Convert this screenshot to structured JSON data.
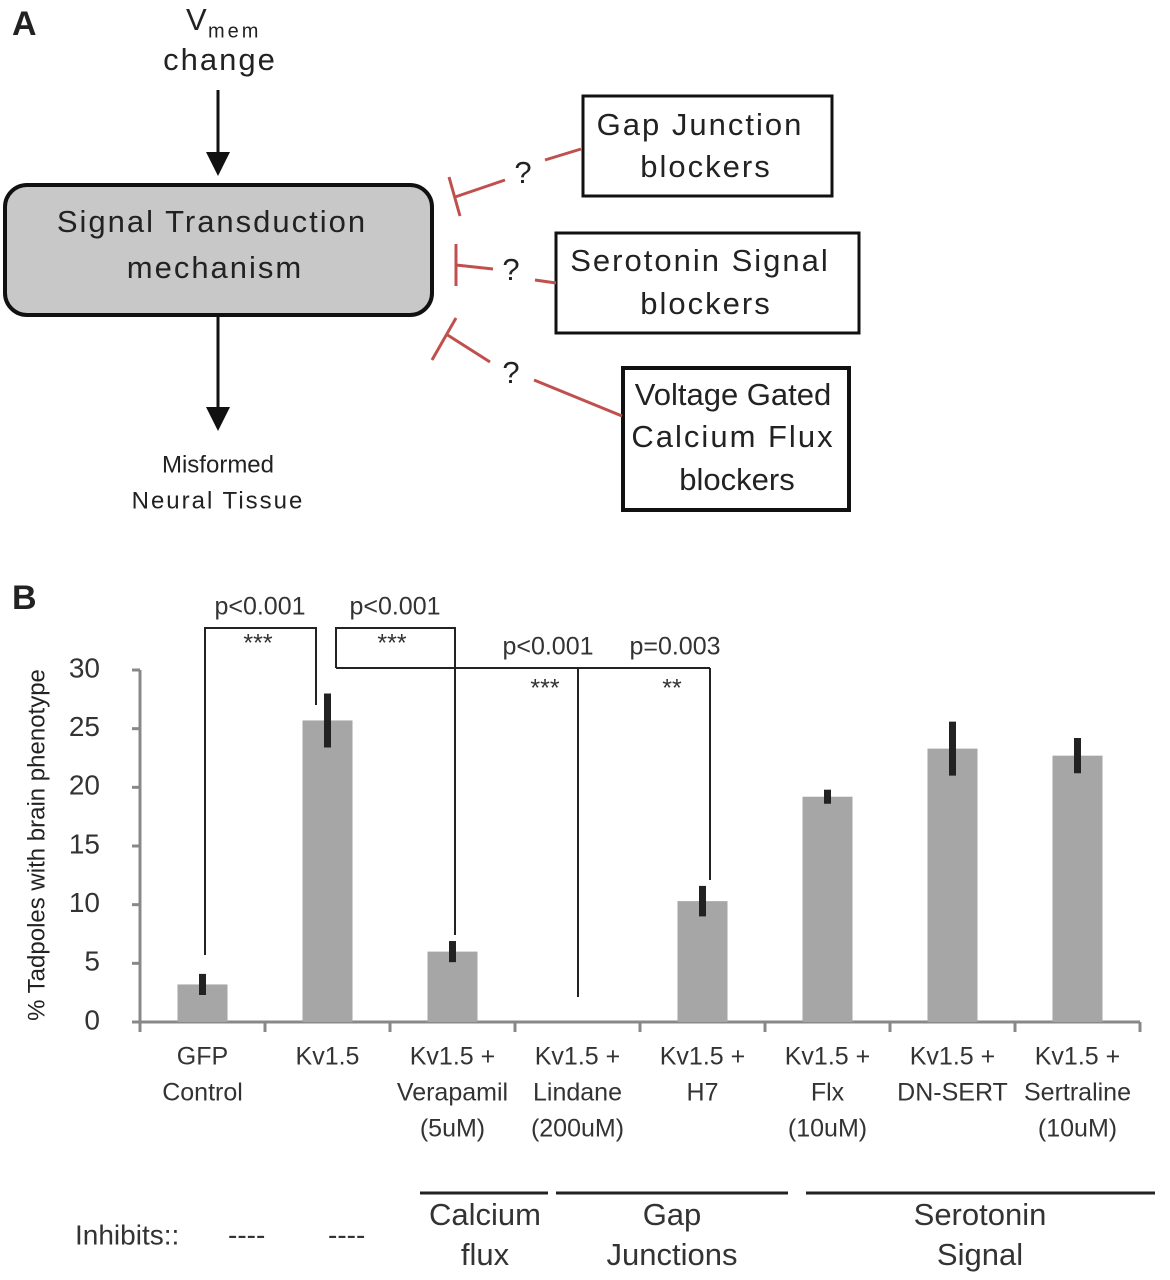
{
  "diagram": {
    "panel": "A",
    "input": {
      "symbol": "V",
      "subscript": "mem",
      "label": "change"
    },
    "center": [
      "Signal Transduction",
      "mechanism"
    ],
    "output": [
      "Misformed",
      "Neural Tissue"
    ],
    "question": "?",
    "blockers": [
      [
        "Gap Junction",
        "blockers"
      ],
      [
        "Serotonin Signal",
        "blockers"
      ],
      [
        "Voltage Gated",
        "Calcium Flux",
        "blockers"
      ]
    ]
  },
  "chart_data": {
    "type": "bar",
    "panel": "B",
    "y_label": "% Tadpoles with brain phenotype",
    "categories": [
      [
        "GFP",
        "Control"
      ],
      [
        "Kv1.5"
      ],
      [
        "Kv1.5 +",
        "Verapamil",
        "(5uM)"
      ],
      [
        "Kv1.5 +",
        "Lindane",
        "(200uM)"
      ],
      [
        "Kv1.5 +",
        "H7"
      ],
      [
        "Kv1.5 +",
        "Flx",
        "(10uM)"
      ],
      [
        "Kv1.5 +",
        "DN-SERT"
      ],
      [
        "Kv1.5 +",
        "Sertraline",
        "(10uM)"
      ]
    ],
    "values": [
      3.2,
      25.7,
      6.0,
      0,
      10.3,
      19.2,
      23.3,
      22.7
    ],
    "errors": [
      0.9,
      2.3,
      0.9,
      null,
      1.3,
      0.6,
      2.3,
      1.5
    ],
    "color": "#a6a6a6",
    "error_color": "#222222",
    "ylim": [
      0,
      30
    ],
    "yticks": [
      0,
      5,
      10,
      15,
      20,
      25,
      30
    ],
    "annotations": [
      {
        "p": "p<0.001",
        "stars": "***"
      },
      {
        "p": "p<0.001",
        "stars": "***"
      },
      {
        "p": "p<0.001",
        "stars": "***"
      },
      {
        "p": "p=0.003",
        "stars": "**"
      }
    ],
    "inhibits": {
      "label": "Inhibits::",
      "none": [
        "----",
        "----"
      ],
      "groups": [
        [
          "Calcium",
          "flux"
        ],
        [
          "Gap",
          "Junctions"
        ],
        [
          "Serotonin",
          "Signal"
        ]
      ]
    }
  }
}
